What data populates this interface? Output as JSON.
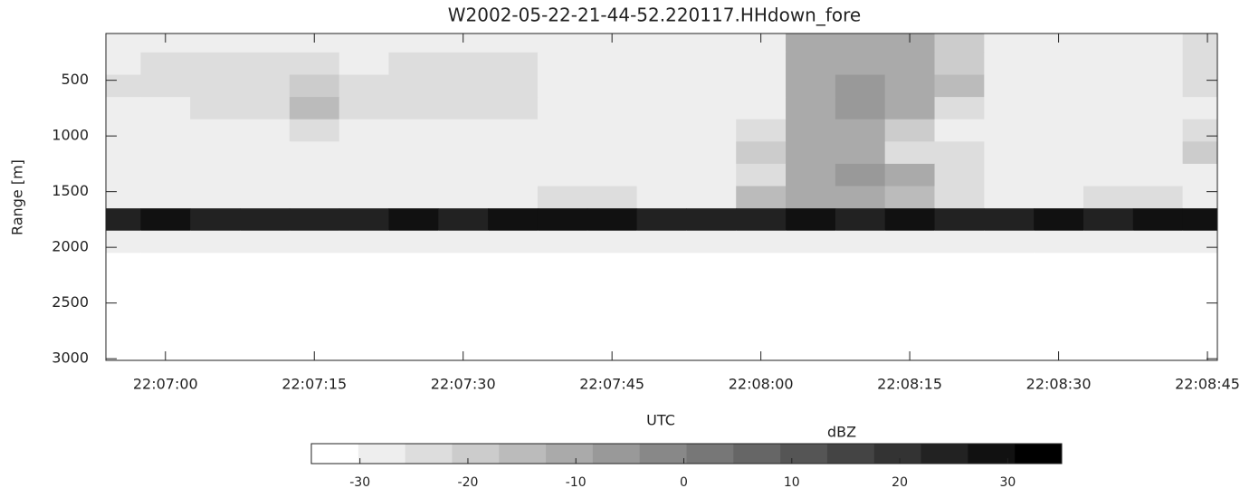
{
  "chart_data": {
    "type": "heatmap",
    "title": "W2002-05-22-21-44-52.220117.HHdown_fore",
    "xlabel": "UTC",
    "ylabel": "Range [m]",
    "x": [
      "22:06:55",
      "22:07:00",
      "22:07:05",
      "22:07:10",
      "22:07:15",
      "22:07:20",
      "22:07:25",
      "22:07:30",
      "22:07:35",
      "22:07:40",
      "22:07:45",
      "22:07:50",
      "22:07:55",
      "22:08:00",
      "22:08:05",
      "22:08:10",
      "22:08:15",
      "22:08:20",
      "22:08:25",
      "22:08:30",
      "22:08:35",
      "22:08:40",
      "22:08:45"
    ],
    "y": [
      150,
      350,
      550,
      750,
      950,
      1150,
      1350,
      1550,
      1750,
      1950,
      2150,
      2350,
      2550,
      2750,
      2950
    ],
    "z": [
      [
        -28,
        -28,
        -26,
        -27,
        -28,
        -27,
        -27,
        -26,
        -27,
        -28,
        -28,
        -28,
        -27,
        -28,
        -12,
        -10,
        -12,
        -20,
        -28,
        -28,
        -28,
        -27,
        -25
      ],
      [
        -26,
        -25,
        -24,
        -25,
        -23,
        -26,
        -25,
        -24,
        -23,
        -26,
        -27,
        -27,
        -27,
        -27,
        -10,
        -9,
        -11,
        -18,
        -27,
        -27,
        -27,
        -26,
        -25
      ],
      [
        -25,
        -24,
        -23,
        -22,
        -20,
        -24,
        -24,
        -22,
        -23,
        -26,
        -26,
        -27,
        -27,
        -27,
        -9,
        -8,
        -10,
        -14,
        -27,
        -27,
        -27,
        -26,
        -25
      ],
      [
        -26,
        -26,
        -25,
        -22,
        -16,
        -24,
        -25,
        -23,
        -25,
        -27,
        -28,
        -28,
        -28,
        -28,
        -9,
        -8,
        -12,
        -22,
        -28,
        -28,
        -28,
        -27,
        -26
      ],
      [
        -28,
        -28,
        -28,
        -27,
        -24,
        -28,
        -28,
        -28,
        -28,
        -29,
        -29,
        -29,
        -29,
        -25,
        -9,
        -9,
        -18,
        -27,
        -29,
        -29,
        -29,
        -28,
        -24
      ],
      [
        -29,
        -29,
        -29,
        -29,
        -29,
        -29,
        -29,
        -29,
        -29,
        -29,
        -29,
        -29,
        -29,
        -18,
        -10,
        -12,
        -22,
        -24,
        -29,
        -29,
        -29,
        -29,
        -20
      ],
      [
        -29,
        -29,
        -29,
        -29,
        -29,
        -29,
        -29,
        -29,
        -29,
        -29,
        -29,
        -29,
        -29,
        -22,
        -10,
        -8,
        -12,
        -25,
        -29,
        -29,
        -29,
        -29,
        -27
      ],
      [
        -27,
        -27,
        -27,
        -27,
        -27,
        -27,
        -27,
        -27,
        -26,
        -22,
        -24,
        -26,
        -26,
        -14,
        -9,
        -10,
        -14,
        -24,
        -26,
        -26,
        -24,
        -25,
        -26
      ],
      [
        25,
        28,
        26,
        24,
        25,
        26,
        28,
        26,
        30,
        30,
        28,
        26,
        25,
        25,
        27,
        26,
        27,
        25,
        24,
        28,
        26,
        29,
        28
      ],
      [
        -29,
        -30,
        -29,
        -30,
        -29,
        -30,
        -29,
        -30,
        -29,
        -30,
        -29,
        -30,
        -29,
        -30,
        -29,
        -30,
        -29,
        -30,
        -29,
        -30,
        -29,
        -30,
        -29
      ],
      [
        -31,
        -31,
        -31,
        -31,
        -31,
        -31,
        -31,
        -31,
        -31,
        -31,
        -31,
        -31,
        -31,
        -31,
        -31,
        -31,
        -31,
        -31,
        -31,
        -31,
        -31,
        -31,
        -31
      ],
      [
        -31,
        -31,
        -31,
        -31,
        -31,
        -31,
        -31,
        -31,
        -31,
        -31,
        -31,
        -31,
        -31,
        -31,
        -31,
        -31,
        -31,
        -31,
        -31,
        -31,
        -31,
        -31,
        -31
      ],
      [
        -31,
        -31,
        -31,
        -31,
        -31,
        -31,
        -31,
        -31,
        -31,
        -31,
        -31,
        -31,
        -31,
        -31,
        -31,
        -31,
        -31,
        -31,
        -31,
        -31,
        -31,
        -31,
        -31
      ],
      [
        -31,
        -31,
        -31,
        -31,
        -31,
        -31,
        -31,
        -31,
        -31,
        -31,
        -31,
        -31,
        -31,
        -31,
        -31,
        -31,
        -31,
        -31,
        -31,
        -31,
        -31,
        -31,
        -31
      ],
      [
        -31,
        -31,
        -31,
        -31,
        -31,
        -31,
        -31,
        -31,
        -31,
        -31,
        -31,
        -31,
        -31,
        -31,
        -31,
        -31,
        -31,
        -31,
        -31,
        -31,
        -31,
        -31,
        -31
      ]
    ],
    "xlim": [
      "22:06:54",
      "22:08:46"
    ],
    "xticks": [
      "22:07:00",
      "22:07:15",
      "22:07:30",
      "22:07:45",
      "22:08:00",
      "22:08:15",
      "22:08:30",
      "22:08:45"
    ],
    "ylim": [
      80,
      3015
    ],
    "y_inverted": true,
    "yticks": [
      500,
      1000,
      1500,
      2000,
      2500,
      3000
    ],
    "colorbar_label": "dBZ",
    "clim": [
      -34.5,
      35
    ],
    "cticks": [
      -30,
      -20,
      -10,
      0,
      10,
      20,
      30
    ],
    "levels": 16,
    "colormap": [
      "#ffffff",
      "#000000"
    ]
  }
}
